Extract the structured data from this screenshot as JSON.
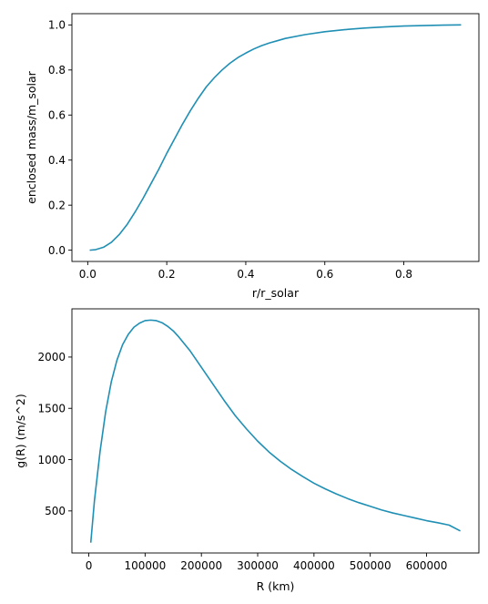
{
  "chart_data": [
    {
      "type": "line",
      "title": "",
      "xlabel": "r/r_solar",
      "ylabel": "enclosed mass/m_solar",
      "xlim": [
        -0.04,
        0.99
      ],
      "ylim": [
        -0.05,
        1.05
      ],
      "xticks": [
        0.0,
        0.2,
        0.4,
        0.6,
        0.8
      ],
      "xtick_labels": [
        "0.0",
        "0.2",
        "0.4",
        "0.6",
        "0.8"
      ],
      "yticks": [
        0.0,
        0.2,
        0.4,
        0.6,
        0.8,
        1.0
      ],
      "ytick_labels": [
        "0.0",
        "0.2",
        "0.4",
        "0.6",
        "0.8",
        "1.0"
      ],
      "grid": false,
      "legend": "none",
      "series": [
        {
          "color": "#1f8fb4",
          "x": [
            0.005,
            0.02,
            0.04,
            0.06,
            0.08,
            0.1,
            0.12,
            0.14,
            0.16,
            0.18,
            0.2,
            0.22,
            0.24,
            0.26,
            0.28,
            0.3,
            0.32,
            0.34,
            0.36,
            0.38,
            0.4,
            0.42,
            0.44,
            0.46,
            0.48,
            0.5,
            0.55,
            0.6,
            0.65,
            0.7,
            0.75,
            0.8,
            0.85,
            0.9,
            0.945
          ],
          "y": [
            0.0,
            0.0025,
            0.013,
            0.035,
            0.07,
            0.115,
            0.17,
            0.23,
            0.295,
            0.36,
            0.43,
            0.495,
            0.56,
            0.62,
            0.675,
            0.725,
            0.765,
            0.8,
            0.83,
            0.855,
            0.875,
            0.893,
            0.908,
            0.92,
            0.93,
            0.94,
            0.957,
            0.97,
            0.979,
            0.986,
            0.991,
            0.995,
            0.997,
            0.999,
            1.0
          ]
        }
      ]
    },
    {
      "type": "line",
      "title": "",
      "xlabel": "R (km)",
      "ylabel": "g(R) (m/s^2)",
      "xlim": [
        -30000,
        693000
      ],
      "ylim": [
        90,
        2470
      ],
      "xticks": [
        0,
        100000,
        200000,
        300000,
        400000,
        500000,
        600000
      ],
      "xtick_labels": [
        "0",
        "100000",
        "200000",
        "300000",
        "400000",
        "500000",
        "600000"
      ],
      "yticks": [
        500,
        1000,
        1500,
        2000
      ],
      "ytick_labels": [
        "500",
        "1000",
        "1500",
        "2000"
      ],
      "grid": false,
      "legend": "none",
      "series": [
        {
          "color": "#1f8fb4",
          "x": [
            3500,
            10000,
            20000,
            30000,
            40000,
            50000,
            60000,
            70000,
            80000,
            90000,
            100000,
            110000,
            120000,
            130000,
            140000,
            150000,
            160000,
            180000,
            200000,
            220000,
            240000,
            260000,
            280000,
            300000,
            320000,
            340000,
            360000,
            380000,
            400000,
            420000,
            440000,
            460000,
            480000,
            500000,
            520000,
            540000,
            560000,
            580000,
            600000,
            620000,
            640000,
            660000
          ],
          "y": [
            190,
            600,
            1080,
            1470,
            1760,
            1970,
            2120,
            2220,
            2290,
            2330,
            2355,
            2360,
            2355,
            2335,
            2300,
            2255,
            2195,
            2060,
            1900,
            1740,
            1580,
            1430,
            1300,
            1180,
            1075,
            985,
            905,
            835,
            770,
            715,
            665,
            620,
            580,
            545,
            510,
            480,
            455,
            430,
            405,
            385,
            362,
            305
          ]
        }
      ]
    }
  ]
}
